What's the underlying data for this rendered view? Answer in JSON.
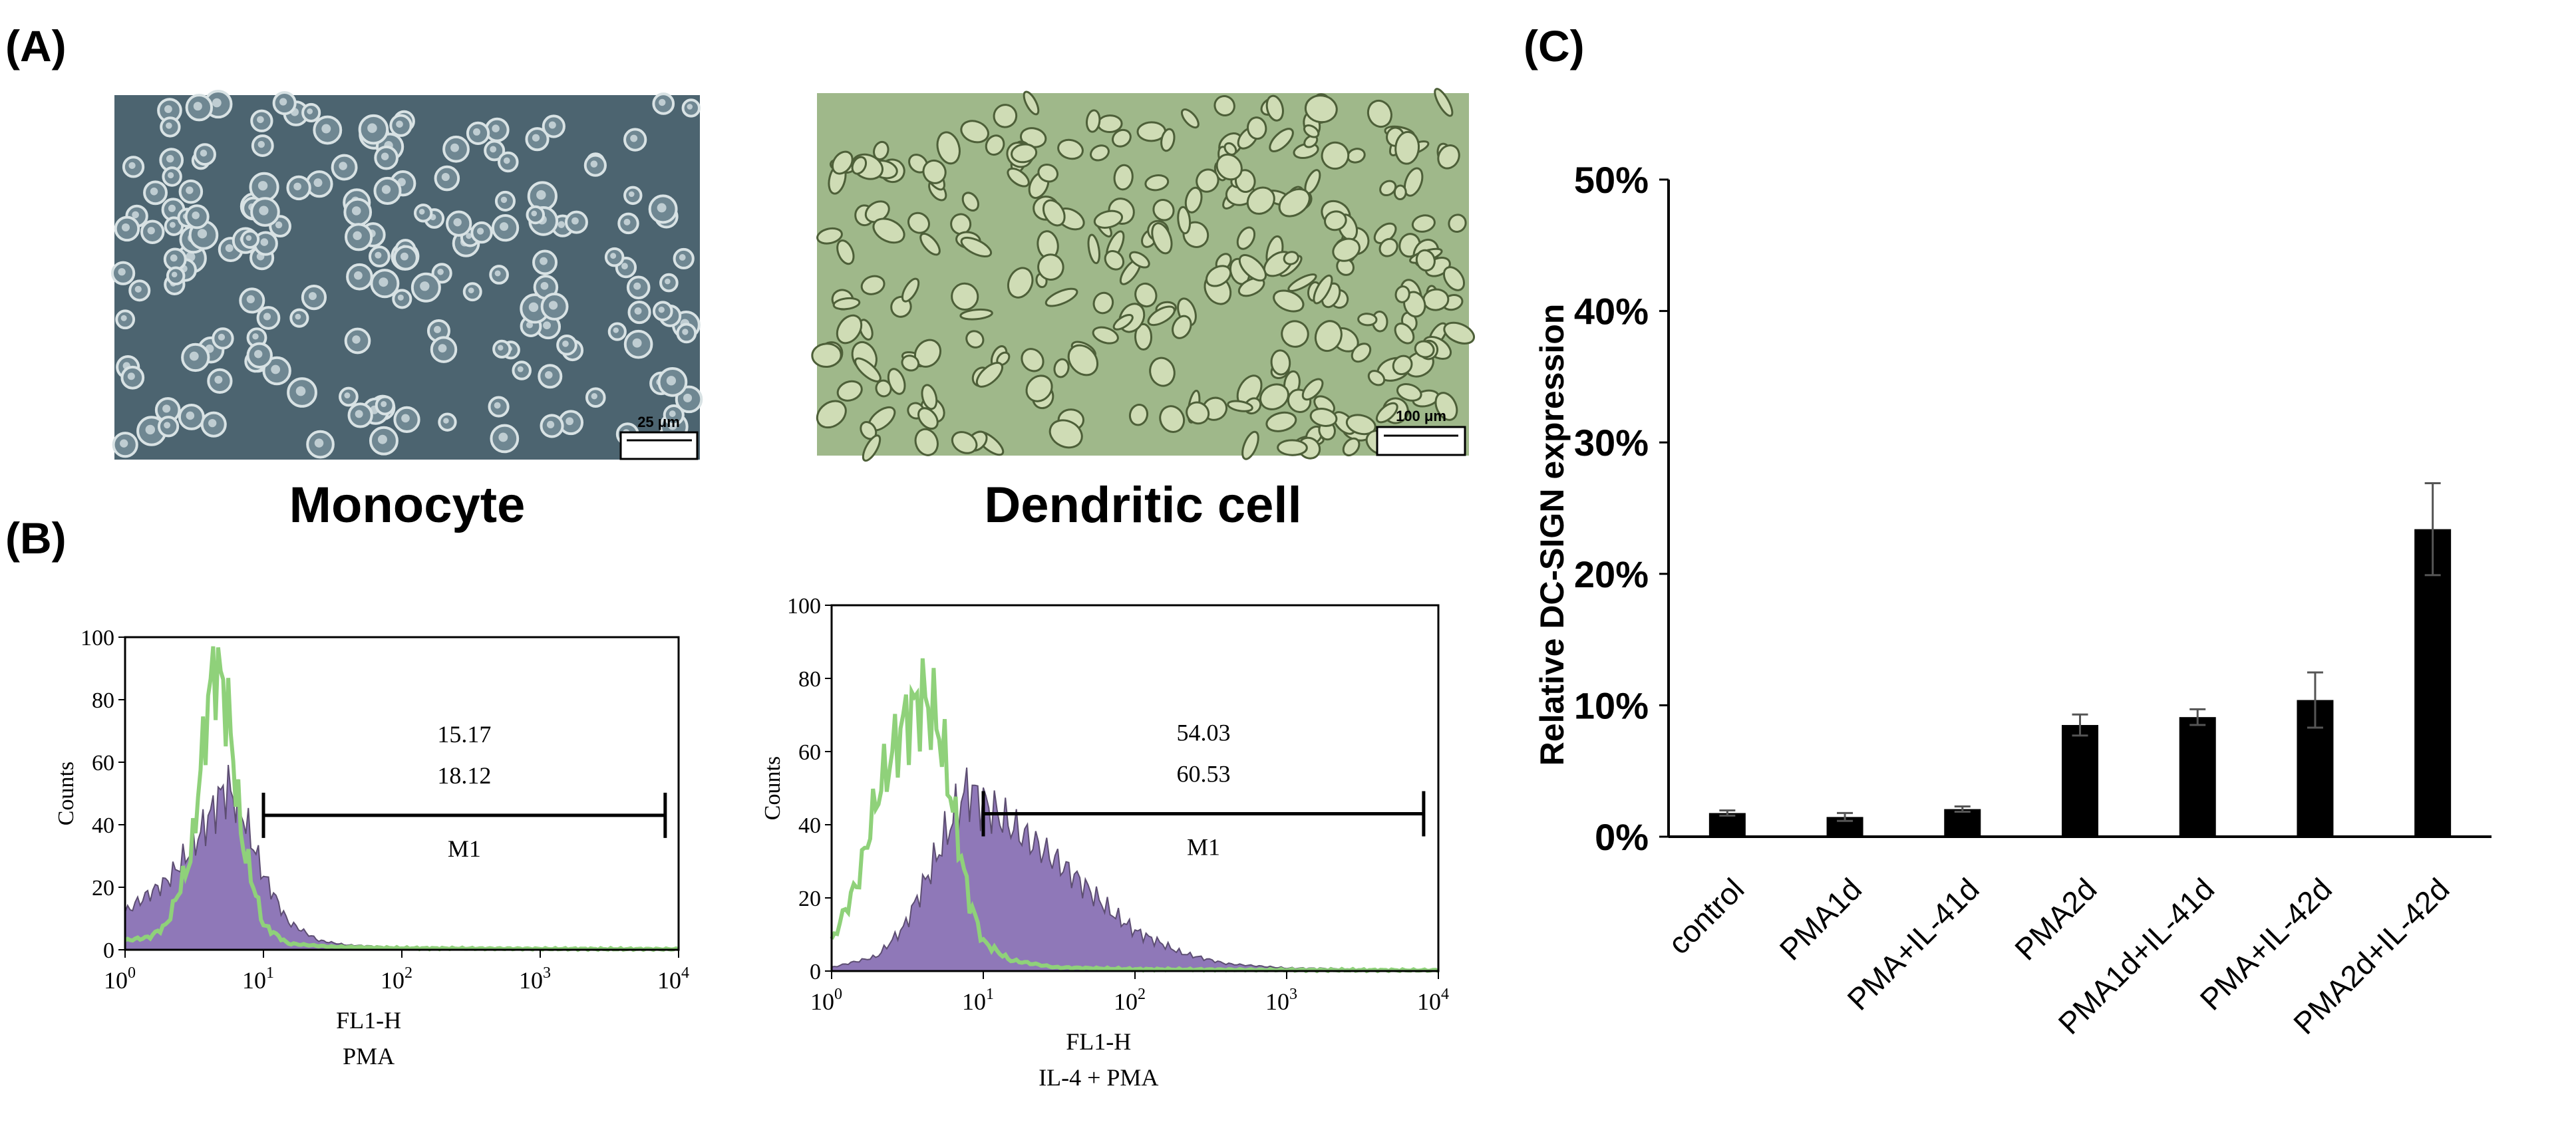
{
  "panel_labels": {
    "a": "(A)",
    "b": "(B)",
    "c": "(C)"
  },
  "micrographs": [
    {
      "caption": "Monocyte",
      "scale_bar": "25 μm",
      "colors": {
        "background": "#4c6470",
        "cell": "#d8e2e4"
      }
    },
    {
      "caption": "Dendritic cell",
      "scale_bar": "100 μm",
      "colors": {
        "background": "#9fb88a",
        "cell": "#cfdcb5"
      }
    }
  ],
  "chart_data": [
    {
      "type": "area",
      "title": "",
      "xlabel": "FL1-H",
      "subtitle": "PMA",
      "ylabel": "Counts",
      "x_scale": "log",
      "xlim": [
        1,
        10000
      ],
      "ylim": [
        0,
        100
      ],
      "y_ticks": [
        "0",
        "20",
        "40",
        "60",
        "80",
        "100"
      ],
      "x_ticks": [
        {
          "base": "10",
          "exp": "0"
        },
        {
          "base": "10",
          "exp": "1"
        },
        {
          "base": "10",
          "exp": "2"
        },
        {
          "base": "10",
          "exp": "3"
        },
        {
          "base": "10",
          "exp": "4"
        }
      ],
      "gate": {
        "label": "M1",
        "from": 10,
        "to": 8000,
        "level": 43,
        "values": [
          "15.17",
          "18.12"
        ]
      },
      "series": [
        {
          "name": "filled",
          "color": "#8f78b8",
          "peak_x": 5.5,
          "peak_y": 52,
          "x": [
            1,
            1.3,
            2,
            3,
            4,
            5,
            5.5,
            7,
            10,
            15,
            25,
            40,
            100,
            1000,
            10000
          ],
          "y": [
            12,
            16,
            22,
            32,
            42,
            50,
            52,
            44,
            24,
            9,
            3,
            1.5,
            0.8,
            0.6,
            0.5
          ]
        },
        {
          "name": "outline",
          "color": "#8fd17a",
          "peak_x": 4.5,
          "peak_y": 92,
          "x": [
            1,
            1.5,
            2,
            3,
            4,
            4.5,
            5.5,
            7,
            10,
            15,
            30,
            100,
            1000,
            10000
          ],
          "y": [
            3,
            4,
            8,
            30,
            80,
            92,
            78,
            35,
            8,
            2,
            1,
            0.5,
            0.3,
            0.2
          ]
        }
      ]
    },
    {
      "type": "area",
      "title": "",
      "xlabel": "FL1-H",
      "subtitle": "IL-4 + PMA",
      "ylabel": "Counts",
      "x_scale": "log",
      "xlim": [
        1,
        10000
      ],
      "ylim": [
        0,
        100
      ],
      "y_ticks": [
        "0",
        "20",
        "40",
        "60",
        "80",
        "100"
      ],
      "x_ticks": [
        {
          "base": "10",
          "exp": "0"
        },
        {
          "base": "10",
          "exp": "1"
        },
        {
          "base": "10",
          "exp": "2"
        },
        {
          "base": "10",
          "exp": "3"
        },
        {
          "base": "10",
          "exp": "4"
        }
      ],
      "gate": {
        "label": "M1",
        "from": 10,
        "to": 8000,
        "level": 43,
        "values": [
          "54.03",
          "60.53"
        ]
      },
      "series": [
        {
          "name": "filled",
          "color": "#8f78b8",
          "peak_x": 8,
          "peak_y": 50,
          "x": [
            1,
            2,
            3,
            5,
            7,
            8,
            10,
            15,
            25,
            40,
            70,
            100,
            200,
            400,
            1000,
            10000
          ],
          "y": [
            1,
            4,
            12,
            32,
            46,
            50,
            46,
            40,
            33,
            26,
            16,
            11,
            5,
            2,
            0.8,
            0.4
          ]
        },
        {
          "name": "outline",
          "color": "#8fd17a",
          "peak_x": 4,
          "peak_y": 75,
          "x": [
            1,
            1.5,
            2,
            3,
            4,
            5,
            6,
            8,
            10,
            15,
            30,
            100,
            1000,
            10000
          ],
          "y": [
            8,
            25,
            48,
            68,
            75,
            68,
            50,
            20,
            8,
            3,
            1,
            0.5,
            0.3,
            0.2
          ]
        }
      ]
    },
    {
      "type": "bar",
      "title": "",
      "xlabel": "",
      "ylabel": "Relative DC-SIGN expression",
      "ylim": [
        0,
        50
      ],
      "y_ticks": [
        "0%",
        "10%",
        "20%",
        "30%",
        "40%",
        "50%"
      ],
      "categories": [
        "control",
        "PMA1d",
        "PMA+IL-41d",
        "PMA2d",
        "PMA1d+IL-41d",
        "PMA+IL-42d",
        "PMA2d+IL-42d"
      ],
      "values": [
        1.8,
        1.5,
        2.1,
        8.5,
        9.1,
        10.4,
        23.4
      ],
      "errors": [
        0.2,
        0.3,
        0.2,
        0.8,
        0.6,
        2.1,
        3.5
      ],
      "colors": {
        "bar": "#000000"
      }
    }
  ]
}
